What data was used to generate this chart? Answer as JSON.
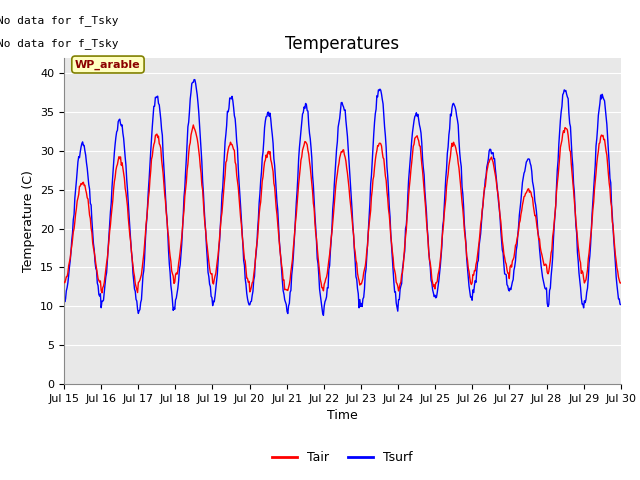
{
  "title": "Temperatures",
  "xlabel": "Time",
  "ylabel": "Temperature (C)",
  "ylim": [
    0,
    42
  ],
  "yticks": [
    0,
    5,
    10,
    15,
    20,
    25,
    30,
    35,
    40
  ],
  "xtick_labels": [
    "Jul 15",
    "Jul 16",
    "Jul 17",
    "Jul 18",
    "Jul 19",
    "Jul 20",
    "Jul 21",
    "Jul 22",
    "Jul 23",
    "Jul 24",
    "Jul 25",
    "Jul 26",
    "Jul 27",
    "Jul 28",
    "Jul 29",
    "Jul 30"
  ],
  "tair_color": "#FF0000",
  "tsurf_color": "#0000FF",
  "fig_bg_color": "#FFFFFF",
  "plot_bg_color": "#E8E8E8",
  "legend_label_tair": "Tair",
  "legend_label_tsurf": "Tsurf",
  "wp_arable_text": "WP_arable",
  "no_data_text1": "No data for f_Tsky",
  "no_data_text2": "No data for f_Tsky",
  "title_fontsize": 12,
  "label_fontsize": 9,
  "tick_fontsize": 8,
  "grid_color": "#FFFFFF",
  "n_days": 15
}
